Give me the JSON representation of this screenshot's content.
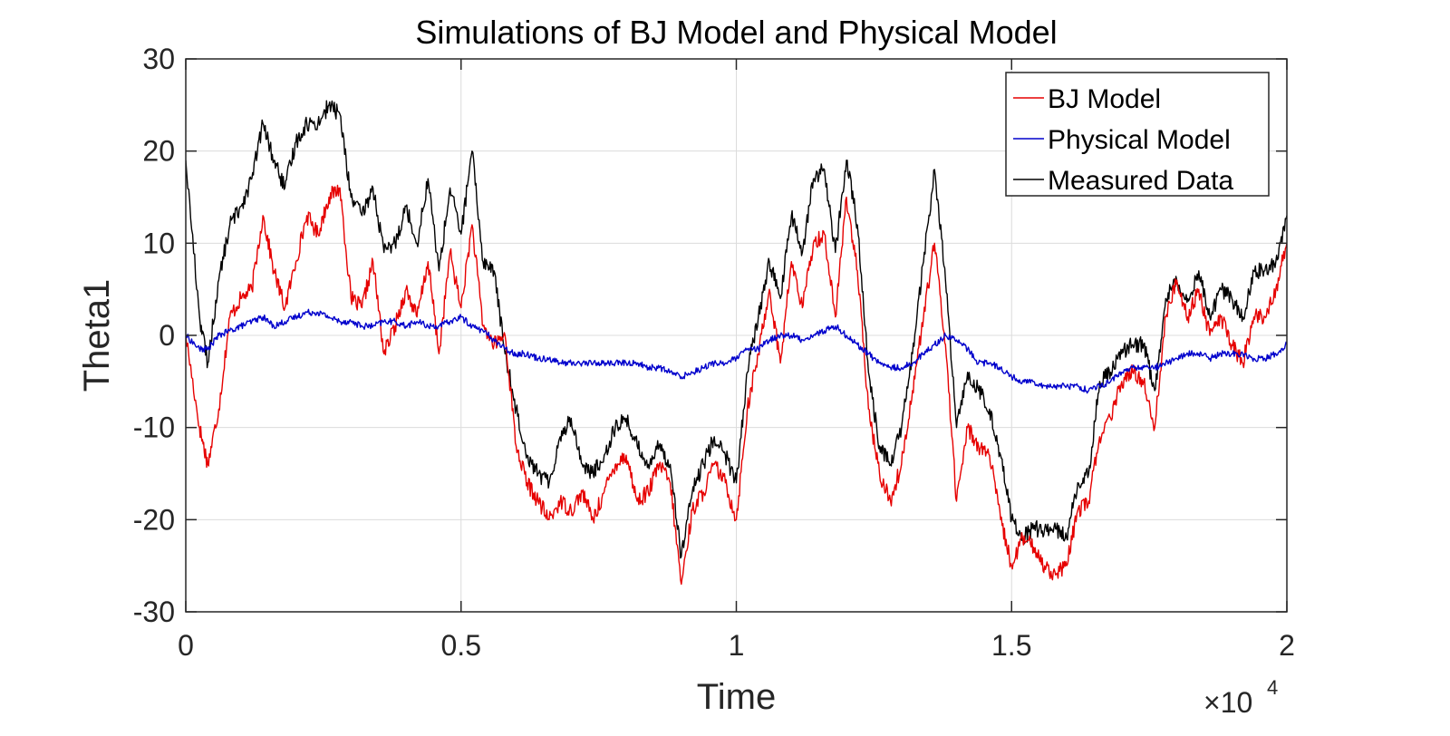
{
  "chart_data": {
    "type": "line",
    "title": "Simulations of BJ Model and Physical Model",
    "xlabel": "Time",
    "ylabel": "Theta1",
    "x_exponent_label": "×10",
    "x_exponent_power": "4",
    "xlim": [
      0,
      20000
    ],
    "ylim": [
      -30,
      30
    ],
    "x_ticks": [
      0,
      5000,
      10000,
      15000,
      20000
    ],
    "x_tick_labels": [
      "0",
      "0.5",
      "1",
      "1.5",
      "2"
    ],
    "y_ticks": [
      -30,
      -20,
      -10,
      0,
      10,
      20,
      30
    ],
    "y_tick_labels": [
      "-30",
      "-20",
      "-10",
      "0",
      "10",
      "20",
      "30"
    ],
    "grid": true,
    "legend_position": "top-right",
    "x": [
      0,
      250,
      400,
      600,
      800,
      1000,
      1200,
      1400,
      1600,
      1800,
      2000,
      2200,
      2400,
      2600,
      2800,
      3000,
      3200,
      3400,
      3600,
      3800,
      4000,
      4200,
      4400,
      4600,
      4800,
      5000,
      5200,
      5400,
      5600,
      5800,
      6000,
      6200,
      6400,
      6600,
      6800,
      7000,
      7200,
      7400,
      7600,
      7800,
      8000,
      8200,
      8400,
      8600,
      8800,
      9000,
      9200,
      9400,
      9600,
      9800,
      10000,
      10200,
      10400,
      10600,
      10800,
      11000,
      11200,
      11400,
      11600,
      11800,
      12000,
      12200,
      12400,
      12600,
      12800,
      13000,
      13200,
      13400,
      13600,
      13800,
      14000,
      14200,
      14400,
      14600,
      14800,
      15000,
      15200,
      15400,
      15600,
      15800,
      16000,
      16200,
      16400,
      16600,
      16800,
      17000,
      17200,
      17400,
      17600,
      17800,
      18000,
      18200,
      18400,
      18600,
      18800,
      19000,
      19200,
      19400,
      19600,
      19800,
      20000
    ],
    "series": [
      {
        "name": "BJ Model",
        "color": "#e60000",
        "values": [
          0,
          -10,
          -14,
          -8,
          2,
          4,
          5,
          13,
          7,
          3,
          8,
          13,
          11,
          15,
          16,
          4,
          3,
          8,
          -2,
          1,
          5,
          2,
          8,
          -2,
          9,
          3,
          12,
          1,
          -1,
          0,
          -12,
          -16,
          -18,
          -20,
          -18,
          -19,
          -17,
          -20,
          -17,
          -14,
          -13,
          -18,
          -17,
          -14,
          -16,
          -27,
          -19,
          -17,
          -14,
          -16,
          -20,
          -8,
          -2,
          5,
          -3,
          8,
          3,
          10,
          11,
          2,
          15,
          7,
          -8,
          -15,
          -18,
          -14,
          -6,
          2,
          10,
          -1,
          -18,
          -10,
          -12,
          -13,
          -20,
          -25,
          -22,
          -23,
          -25,
          -26,
          -25,
          -19,
          -18,
          -11,
          -9,
          -5,
          -4,
          -5,
          -10,
          2,
          6,
          2,
          5,
          0,
          2,
          -1,
          -3,
          2,
          2,
          5,
          10
        ]
      },
      {
        "name": "Physical Model",
        "color": "#0000cc",
        "values": [
          0,
          -1.5,
          -1.5,
          0,
          0.5,
          1,
          1.5,
          2,
          1,
          1.5,
          2,
          2.5,
          2.5,
          2,
          1.5,
          1.5,
          1,
          1,
          1.5,
          1.5,
          1,
          1.5,
          1,
          1,
          1.5,
          2,
          1,
          0.5,
          -0.5,
          -1.5,
          -2,
          -2,
          -2.5,
          -2.5,
          -3,
          -3,
          -3,
          -3,
          -3,
          -3,
          -3,
          -3,
          -3.5,
          -3.5,
          -4,
          -4.5,
          -4,
          -3.5,
          -3,
          -3,
          -2.5,
          -1.5,
          -1.5,
          -0.5,
          0,
          0,
          -0.5,
          0,
          0.5,
          1,
          0,
          -1,
          -2,
          -3,
          -3.5,
          -3.5,
          -3,
          -2,
          -1,
          0,
          -0.5,
          -1.5,
          -3,
          -3,
          -3.5,
          -4.5,
          -5,
          -5,
          -5.5,
          -5.5,
          -5.5,
          -5.5,
          -6,
          -5.5,
          -5,
          -4,
          -3.5,
          -3.5,
          -3.5,
          -3,
          -2.5,
          -2,
          -2,
          -2.5,
          -2,
          -2,
          -2,
          -2.5,
          -2.5,
          -2,
          -1
        ]
      },
      {
        "name": "Measured Data",
        "color": "#000000",
        "values": [
          19,
          2,
          -3,
          6,
          12,
          14,
          17,
          23,
          19,
          16,
          21,
          23,
          23,
          25,
          24,
          15,
          13,
          16,
          9,
          10,
          14,
          10,
          17,
          7,
          16,
          11,
          20,
          8,
          7,
          -2,
          -8,
          -13,
          -15,
          -16,
          -11,
          -9,
          -14,
          -15,
          -13,
          -10,
          -9,
          -12,
          -14,
          -12,
          -14,
          -24,
          -17,
          -14,
          -11,
          -13,
          -16,
          -4,
          2,
          8,
          4,
          13,
          9,
          17,
          18,
          9,
          19,
          12,
          -4,
          -12,
          -14,
          -10,
          -2,
          8,
          18,
          6,
          -10,
          -4,
          -6,
          -8,
          -13,
          -20,
          -22,
          -21,
          -21,
          -21,
          -22,
          -16,
          -15,
          -5,
          -4,
          -2,
          -1,
          -1,
          -6,
          4,
          6,
          4,
          7,
          2,
          5,
          4,
          2,
          7,
          7,
          8,
          13
        ]
      }
    ]
  }
}
